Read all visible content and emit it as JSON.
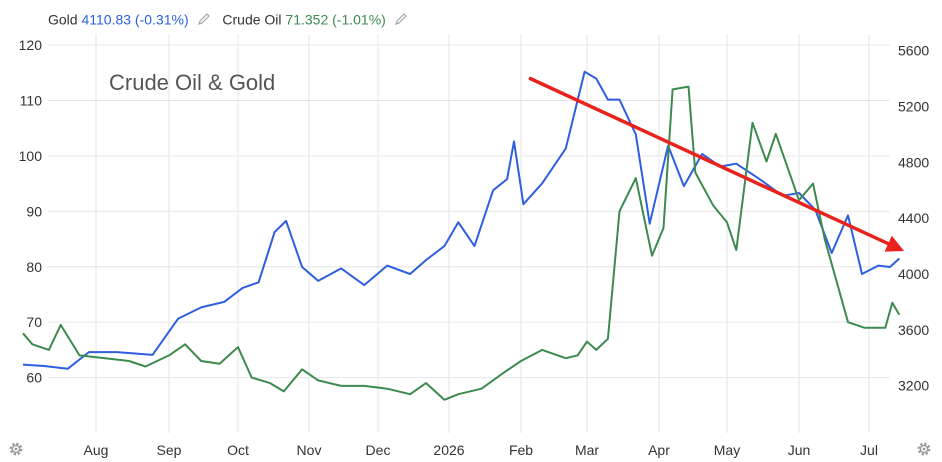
{
  "legend": {
    "gold_label": "Gold",
    "gold_value": "4110.83 (-0.31%)",
    "oil_label": "Crude Oil",
    "oil_value": "71.352 (-1.01%)",
    "edit_icon": "pencil-icon"
  },
  "settings_icon": "gear-icon",
  "colors": {
    "gold": "#2e5fe0",
    "oil": "#3d8a4f",
    "trend_arrow": "#e8231d",
    "grid": "#e6e6e6",
    "icon": "#9a9a9a"
  },
  "chart_data": {
    "type": "line",
    "title": "Crude Oil & Gold",
    "x_ticks": [
      "Aug",
      "Sep",
      "Oct",
      "Nov",
      "Dec",
      "2026",
      "Feb",
      "Mar",
      "Apr",
      "May",
      "Jun",
      "Jul"
    ],
    "y_left": {
      "ylim": [
        50,
        122
      ],
      "ticks": [
        60,
        70,
        80,
        90,
        100,
        110,
        120
      ]
    },
    "y_right": {
      "ylim": [
        2860,
        5720
      ],
      "ticks": [
        3200,
        3600,
        4000,
        4400,
        4800,
        5200,
        5600
      ]
    },
    "grid": true,
    "series": [
      {
        "name": "Gold",
        "axis": "right",
        "last_value": 4110.83,
        "change_pct": -0.31,
        "x": [
          "2025-07-01",
          "2025-07-10",
          "2025-07-20",
          "2025-07-29",
          "2025-08-10",
          "2025-08-25",
          "2025-09-05",
          "2025-09-15",
          "2025-09-25",
          "2025-10-03",
          "2025-10-10",
          "2025-10-17",
          "2025-10-22",
          "2025-10-29",
          "2025-11-05",
          "2025-11-15",
          "2025-11-25",
          "2025-12-05",
          "2025-12-15",
          "2025-12-22",
          "2025-12-30",
          "2026-01-05",
          "2026-01-12",
          "2026-01-20",
          "2026-01-26",
          "2026-01-29",
          "2026-02-02",
          "2026-02-10",
          "2026-02-20",
          "2026-02-28",
          "2026-03-05",
          "2026-03-10",
          "2026-03-15",
          "2026-03-22",
          "2026-03-28",
          "2026-04-05",
          "2026-04-12",
          "2026-04-20",
          "2026-04-28",
          "2026-05-05",
          "2026-05-15",
          "2026-05-25",
          "2026-06-01",
          "2026-06-08",
          "2026-06-15",
          "2026-06-22",
          "2026-06-28",
          "2026-07-05",
          "2026-07-10",
          "2026-07-14"
        ],
        "y": [
          3350,
          3340,
          3320,
          3440,
          3440,
          3420,
          3680,
          3760,
          3800,
          3900,
          3940,
          4300,
          4380,
          4050,
          3950,
          4040,
          3920,
          4060,
          4000,
          4100,
          4200,
          4370,
          4200,
          4600,
          4680,
          4950,
          4500,
          4650,
          4900,
          5450,
          5400,
          5250,
          5250,
          5000,
          4360,
          4920,
          4630,
          4860,
          4770,
          4790,
          4680,
          4560,
          4580,
          4460,
          4150,
          4420,
          4000,
          4060,
          4050,
          4110.83
        ]
      },
      {
        "name": "Crude Oil",
        "axis": "left",
        "last_value": 71.352,
        "change_pct": -1.01,
        "x": [
          "2025-07-01",
          "2025-07-05",
          "2025-07-12",
          "2025-07-17",
          "2025-07-25",
          "2025-08-05",
          "2025-08-15",
          "2025-08-22",
          "2025-09-01",
          "2025-09-08",
          "2025-09-15",
          "2025-09-23",
          "2025-10-01",
          "2025-10-07",
          "2025-10-15",
          "2025-10-21",
          "2025-10-29",
          "2025-11-05",
          "2025-11-15",
          "2025-11-25",
          "2025-12-05",
          "2025-12-15",
          "2025-12-22",
          "2025-12-30",
          "2026-01-05",
          "2026-01-15",
          "2026-01-25",
          "2026-02-01",
          "2026-02-10",
          "2026-02-20",
          "2026-02-25",
          "2026-03-01",
          "2026-03-05",
          "2026-03-10",
          "2026-03-15",
          "2026-03-22",
          "2026-03-29",
          "2026-04-03",
          "2026-04-07",
          "2026-04-14",
          "2026-04-17",
          "2026-04-25",
          "2026-05-01",
          "2026-05-05",
          "2026-05-12",
          "2026-05-18",
          "2026-05-22",
          "2026-06-01",
          "2026-06-07",
          "2026-06-12",
          "2026-06-18",
          "2026-06-22",
          "2026-06-29",
          "2026-07-04",
          "2026-07-08",
          "2026-07-11",
          "2026-07-14"
        ],
        "y": [
          68,
          66,
          65,
          69.5,
          64,
          63.5,
          63,
          62,
          64,
          66,
          63,
          62.5,
          65.5,
          60,
          59,
          57.5,
          61.5,
          59.5,
          58.5,
          58.5,
          58,
          57,
          59,
          56,
          57,
          58,
          61,
          63,
          65,
          63.5,
          64,
          66.5,
          65,
          67,
          90,
          96,
          82,
          87,
          112,
          112.5,
          97,
          91,
          88,
          83,
          106,
          99,
          104,
          92,
          95,
          85,
          76,
          70,
          69,
          69,
          69,
          73.5,
          71.352
        ]
      }
    ],
    "annotations": [
      {
        "type": "arrow",
        "from": {
          "x": "2026-02-05",
          "value": 5400
        },
        "to": {
          "x": "2026-07-14",
          "value": 4180
        },
        "axis": "right"
      }
    ]
  }
}
